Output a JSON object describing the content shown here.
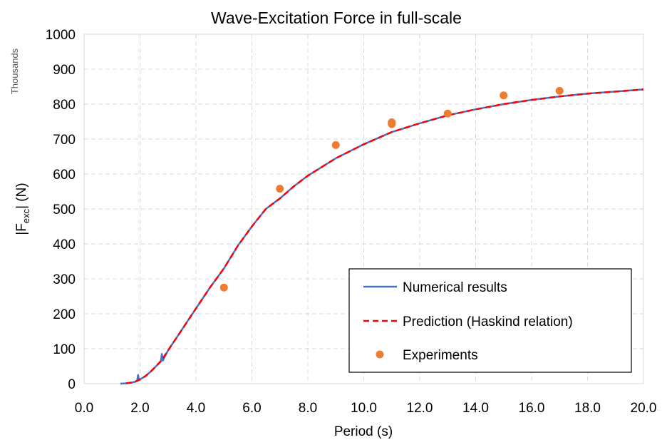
{
  "chart_data": {
    "type": "line",
    "title": "Wave-Excitation Force in full-scale",
    "xlabel": "Period (s)",
    "ylabel_prefix": "|F",
    "ylabel_sub": "exc",
    "ylabel_suffix": "| (N)",
    "y_units_label": "Thousands",
    "xlim": [
      0,
      20
    ],
    "ylim": [
      0,
      1000
    ],
    "x_ticks": [
      "0.0",
      "2.0",
      "4.0",
      "6.0",
      "8.0",
      "10.0",
      "12.0",
      "14.0",
      "16.0",
      "18.0",
      "20.0"
    ],
    "y_ticks": [
      "0",
      "100",
      "200",
      "300",
      "400",
      "500",
      "600",
      "700",
      "800",
      "900",
      "1000"
    ],
    "grid": true,
    "legend_position": "bottom-right",
    "series": [
      {
        "name": "Numerical results",
        "style": "solid",
        "color": "#4472C4",
        "x": [
          1.3,
          1.5,
          1.7,
          1.85,
          1.9,
          1.93,
          1.96,
          2.0,
          2.2,
          2.4,
          2.6,
          2.75,
          2.78,
          2.82,
          2.85,
          3.0,
          3.5,
          4.0,
          4.5,
          5.0,
          5.5,
          6.0,
          6.5,
          7.0,
          7.5,
          8.0,
          8.5,
          9.0,
          9.5,
          10.0,
          11.0,
          12.0,
          13.0,
          14.0,
          15.0,
          16.0,
          17.0,
          18.0,
          19.0,
          20.0
        ],
        "y": [
          0,
          1,
          3,
          6,
          10,
          25,
          12,
          12,
          22,
          36,
          52,
          64,
          85,
          66,
          72,
          95,
          155,
          215,
          275,
          330,
          395,
          450,
          500,
          530,
          565,
          595,
          620,
          645,
          665,
          685,
          720,
          745,
          768,
          785,
          800,
          812,
          822,
          830,
          836,
          842
        ]
      },
      {
        "name": "Prediction (Haskind relation)",
        "style": "dashed",
        "color": "#FF0000",
        "x": [
          1.5,
          1.7,
          1.9,
          2.0,
          2.2,
          2.4,
          2.6,
          2.8,
          3.0,
          3.5,
          4.0,
          4.5,
          5.0,
          5.5,
          6.0,
          6.5,
          7.0,
          7.5,
          8.0,
          8.5,
          9.0,
          9.5,
          10.0,
          11.0,
          12.0,
          13.0,
          14.0,
          15.0,
          16.0,
          17.0,
          18.0,
          19.0,
          20.0
        ],
        "y": [
          1,
          3,
          8,
          12,
          22,
          36,
          52,
          70,
          95,
          155,
          215,
          275,
          330,
          395,
          450,
          500,
          530,
          565,
          595,
          620,
          645,
          665,
          685,
          720,
          745,
          768,
          785,
          800,
          812,
          822,
          830,
          836,
          842
        ]
      },
      {
        "name": "Experiments",
        "style": "marker",
        "color": "#ED7D31",
        "x": [
          5,
          7,
          9,
          11,
          11,
          13,
          15,
          17
        ],
        "y": [
          275,
          558,
          683,
          743,
          748,
          773,
          825,
          838
        ]
      }
    ]
  }
}
